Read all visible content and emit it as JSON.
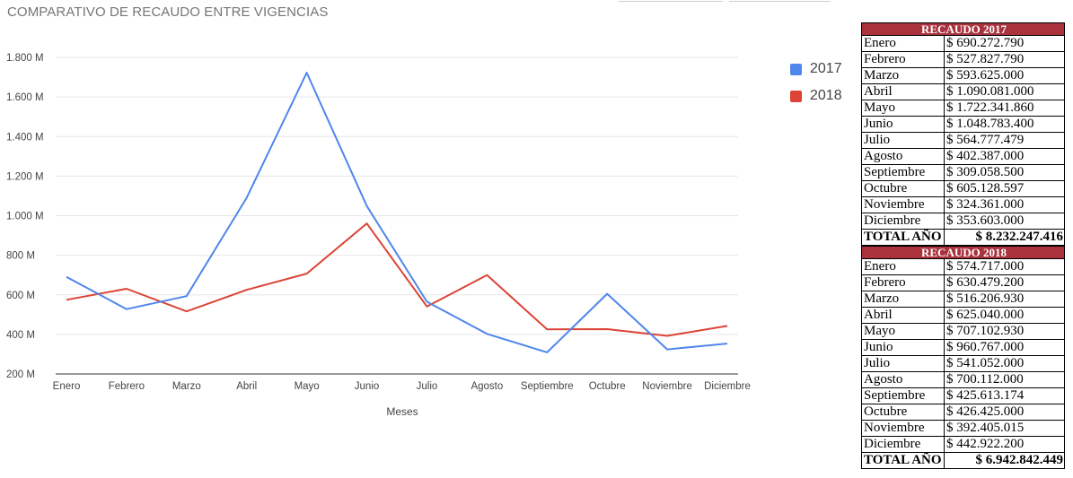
{
  "chart_data": {
    "type": "line",
    "title": "COMPARATIVO DE RECAUDO ENTRE VIGENCIAS",
    "xlabel": "Meses",
    "ylabel": "",
    "categories": [
      "Enero",
      "Febrero",
      "Marzo",
      "Abril",
      "Mayo",
      "Junio",
      "Julio",
      "Agosto",
      "Septiembre",
      "Octubre",
      "Noviembre",
      "Diciembre"
    ],
    "yticks": [
      "200 M",
      "400 M",
      "600 M",
      "800 M",
      "1.000 M",
      "1.200 M",
      "1.400 M",
      "1.600 M",
      "1.800 M"
    ],
    "ylim": [
      200,
      1800
    ],
    "grid": true,
    "legend_position": "right",
    "series": [
      {
        "name": "2017",
        "color": "#4f86ec",
        "values": [
          690.27,
          527.83,
          593.63,
          1090.08,
          1722.34,
          1048.78,
          564.78,
          402.39,
          309.06,
          605.13,
          324.36,
          353.6
        ]
      },
      {
        "name": "2018",
        "color": "#db4437",
        "values": [
          574.72,
          630.48,
          516.21,
          625.04,
          707.1,
          960.77,
          541.05,
          700.11,
          425.61,
          426.43,
          392.41,
          442.92
        ]
      }
    ]
  },
  "tables": [
    {
      "header": "RECAUDO 2017",
      "rows": [
        {
          "month": "Enero",
          "value": "$ 690.272.790"
        },
        {
          "month": "Febrero",
          "value": "$ 527.827.790"
        },
        {
          "month": "Marzo",
          "value": "$ 593.625.000"
        },
        {
          "month": "Abril",
          "value": "$ 1.090.081.000"
        },
        {
          "month": "Mayo",
          "value": "$ 1.722.341.860"
        },
        {
          "month": "Junio",
          "value": "$ 1.048.783.400"
        },
        {
          "month": "Julio",
          "value": "$ 564.777.479"
        },
        {
          "month": "Agosto",
          "value": "$ 402.387.000"
        },
        {
          "month": "Septiembre",
          "value": "$ 309.058.500"
        },
        {
          "month": "Octubre",
          "value": "$ 605.128.597"
        },
        {
          "month": "Noviembre",
          "value": "$ 324.361.000"
        },
        {
          "month": "Diciembre",
          "value": "$ 353.603.000"
        }
      ],
      "total_label": "TOTAL AÑO",
      "total_value": "$ 8.232.247.416"
    },
    {
      "header": "RECAUDO 2018",
      "rows": [
        {
          "month": "Enero",
          "value": "$ 574.717.000"
        },
        {
          "month": "Febrero",
          "value": "$ 630.479.200"
        },
        {
          "month": "Marzo",
          "value": "$ 516.206.930"
        },
        {
          "month": "Abril",
          "value": "$ 625.040.000"
        },
        {
          "month": "Mayo",
          "value": "$ 707.102.930"
        },
        {
          "month": "Junio",
          "value": "$ 960.767.000"
        },
        {
          "month": "Julio",
          "value": "$ 541.052.000"
        },
        {
          "month": "Agosto",
          "value": "$ 700.112.000"
        },
        {
          "month": "Septiembre",
          "value": "$ 425.613.174"
        },
        {
          "month": "Octubre",
          "value": "$ 426.425.000"
        },
        {
          "month": "Noviembre",
          "value": "$ 392.405.015"
        },
        {
          "month": "Diciembre",
          "value": "$ 442.922.200"
        }
      ],
      "total_label": "TOTAL AÑO",
      "total_value": "$ 6.942.842.449"
    }
  ]
}
